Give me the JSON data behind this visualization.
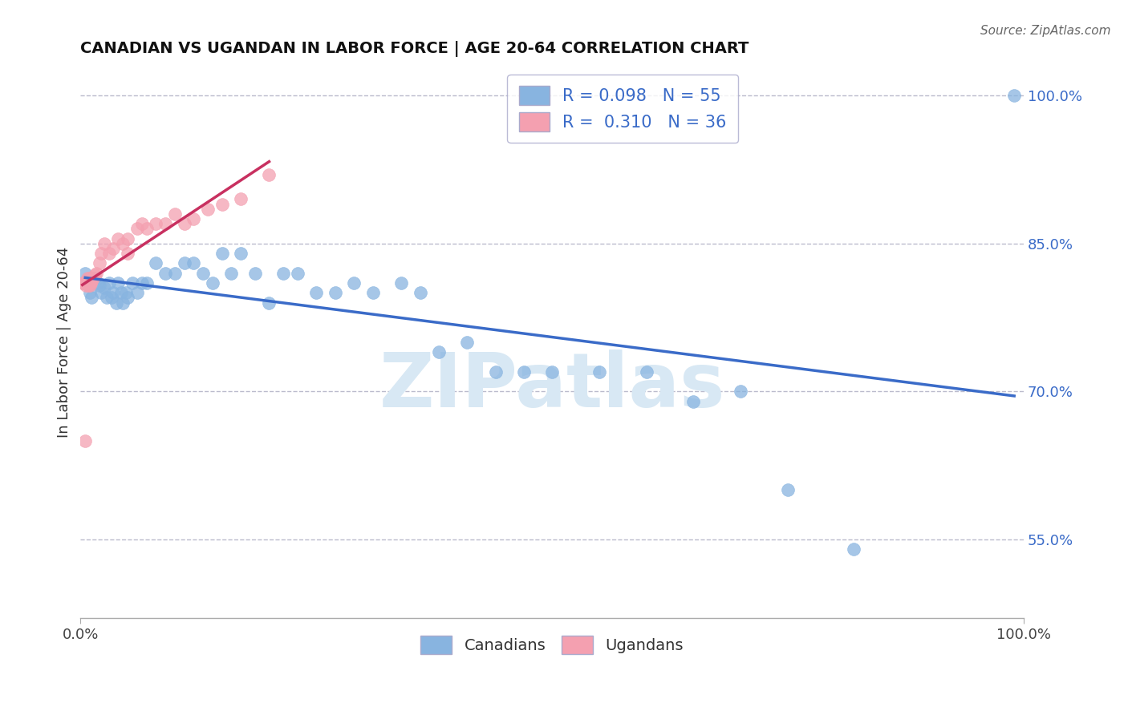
{
  "title": "CANADIAN VS UGANDAN IN LABOR FORCE | AGE 20-64 CORRELATION CHART",
  "source_text": "Source: ZipAtlas.com",
  "ylabel": "In Labor Force | Age 20-64",
  "xlim": [
    0.0,
    1.0
  ],
  "ylim_data": [
    0.47,
    1.03
  ],
  "yticks": [
    0.55,
    0.7,
    0.85,
    1.0
  ],
  "ytick_labels": [
    "55.0%",
    "70.0%",
    "85.0%",
    "100.0%"
  ],
  "xtick_labels": [
    "0.0%",
    "100.0%"
  ],
  "xticks": [
    0.0,
    1.0
  ],
  "R_canadian": 0.098,
  "N_canadian": 55,
  "R_ugandan": 0.31,
  "N_ugandan": 36,
  "canadian_color": "#88b4e0",
  "ugandan_color": "#f4a0b0",
  "trend_canadian_color": "#3a6bc8",
  "trend_ugandan_color": "#c83060",
  "watermark_color": "#d8e8f4",
  "background_color": "#ffffff",
  "grid_color": "#bbbbcc",
  "canadians_x": [
    0.005,
    0.008,
    0.01,
    0.012,
    0.015,
    0.018,
    0.02,
    0.022,
    0.025,
    0.028,
    0.03,
    0.033,
    0.035,
    0.038,
    0.04,
    0.043,
    0.045,
    0.048,
    0.05,
    0.055,
    0.06,
    0.065,
    0.07,
    0.08,
    0.09,
    0.1,
    0.11,
    0.12,
    0.13,
    0.14,
    0.15,
    0.16,
    0.17,
    0.185,
    0.2,
    0.215,
    0.23,
    0.25,
    0.27,
    0.29,
    0.31,
    0.34,
    0.36,
    0.38,
    0.41,
    0.44,
    0.47,
    0.5,
    0.55,
    0.6,
    0.65,
    0.7,
    0.75,
    0.82,
    0.99
  ],
  "canadians_y": [
    0.82,
    0.81,
    0.8,
    0.795,
    0.815,
    0.81,
    0.808,
    0.8,
    0.805,
    0.795,
    0.81,
    0.795,
    0.8,
    0.79,
    0.81,
    0.8,
    0.79,
    0.8,
    0.795,
    0.81,
    0.8,
    0.81,
    0.81,
    0.83,
    0.82,
    0.82,
    0.83,
    0.83,
    0.82,
    0.81,
    0.84,
    0.82,
    0.84,
    0.82,
    0.79,
    0.82,
    0.82,
    0.8,
    0.8,
    0.81,
    0.8,
    0.81,
    0.8,
    0.74,
    0.75,
    0.72,
    0.72,
    0.72,
    0.72,
    0.72,
    0.69,
    0.7,
    0.6,
    0.54,
    1.0
  ],
  "ugandans_x": [
    0.002,
    0.003,
    0.004,
    0.005,
    0.006,
    0.007,
    0.008,
    0.009,
    0.01,
    0.011,
    0.012,
    0.013,
    0.015,
    0.017,
    0.02,
    0.022,
    0.025,
    0.03,
    0.035,
    0.04,
    0.045,
    0.05,
    0.06,
    0.07,
    0.08,
    0.09,
    0.1,
    0.11,
    0.12,
    0.135,
    0.15,
    0.17,
    0.2,
    0.05,
    0.065,
    0.005
  ],
  "ugandans_y": [
    0.81,
    0.81,
    0.81,
    0.81,
    0.808,
    0.815,
    0.808,
    0.815,
    0.808,
    0.81,
    0.812,
    0.815,
    0.818,
    0.82,
    0.83,
    0.84,
    0.85,
    0.84,
    0.845,
    0.855,
    0.85,
    0.855,
    0.865,
    0.865,
    0.87,
    0.87,
    0.88,
    0.87,
    0.875,
    0.885,
    0.89,
    0.895,
    0.92,
    0.84,
    0.87,
    0.65
  ]
}
